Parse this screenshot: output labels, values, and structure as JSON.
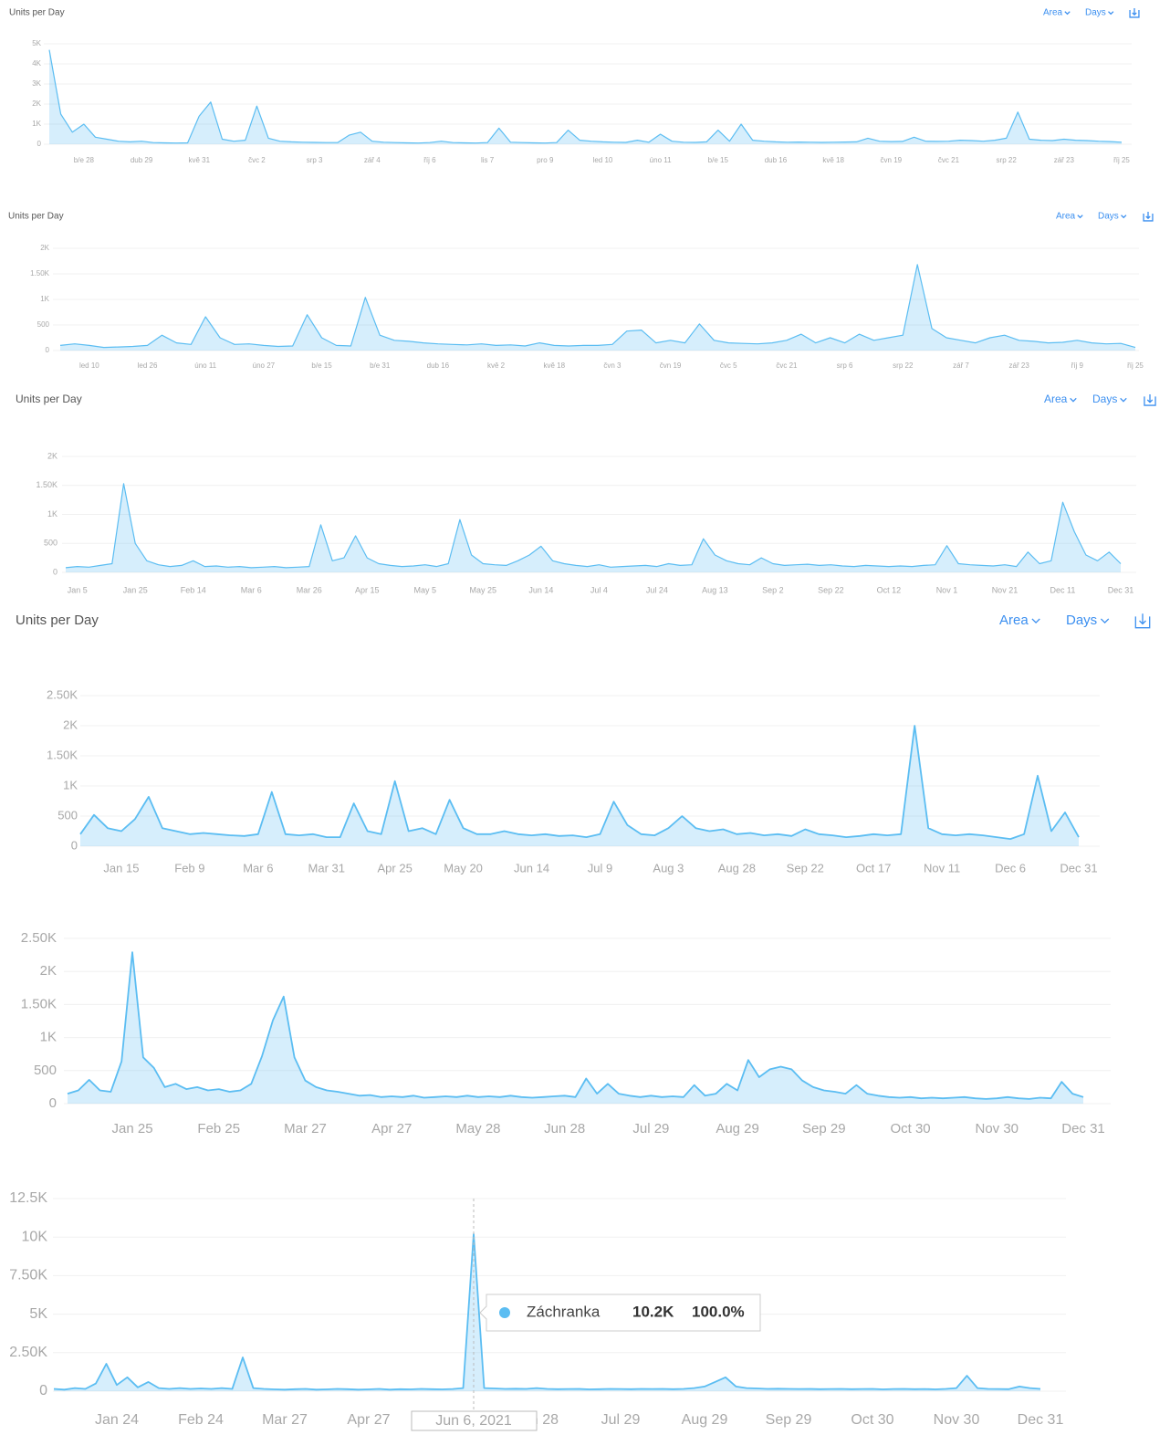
{
  "chart_data": [
    {
      "type": "area",
      "title": "Units per Day",
      "controls": [
        "Area",
        "Days"
      ],
      "color": "#5bbdf2",
      "categories": [
        null,
        null,
        null,
        "b/e 28",
        null,
        null,
        null,
        null,
        "dub 29",
        null,
        null,
        null,
        null,
        "kvě 31",
        null,
        null,
        null,
        null,
        "čvc 2",
        null,
        null,
        null,
        null,
        "srp 3",
        null,
        null,
        null,
        null,
        "zář 4",
        null,
        null,
        null,
        null,
        "říj 6",
        null,
        null,
        null,
        null,
        "lis 7",
        null,
        null,
        null,
        null,
        "pro 9",
        null,
        null,
        null,
        null,
        "led 10",
        null,
        null,
        null,
        null,
        "úno 11",
        null,
        null,
        null,
        null,
        "b/e 15",
        null,
        null,
        null,
        null,
        "dub 16",
        null,
        null,
        null,
        null,
        "kvě 18",
        null,
        null,
        null,
        null,
        "čvn 19",
        null,
        null,
        null,
        null,
        "čvc 21",
        null,
        null,
        null,
        null,
        "srp 22",
        null,
        null,
        null,
        null,
        "zář 23",
        null,
        null,
        null,
        null,
        "říj 25"
      ],
      "values": [
        4700,
        1500,
        600,
        1000,
        350,
        250,
        150,
        120,
        150,
        80,
        70,
        60,
        70,
        1400,
        2100,
        250,
        150,
        200,
        1900,
        300,
        150,
        120,
        100,
        90,
        80,
        80,
        450,
        600,
        150,
        100,
        80,
        70,
        60,
        80,
        150,
        80,
        70,
        60,
        80,
        800,
        100,
        80,
        70,
        60,
        80,
        700,
        200,
        150,
        120,
        100,
        90,
        200,
        100,
        500,
        150,
        100,
        90,
        120,
        700,
        150,
        1000,
        200,
        150,
        120,
        100,
        110,
        100,
        90,
        100,
        110,
        120,
        300,
        150,
        130,
        140,
        350,
        150,
        140,
        150,
        200,
        180,
        150,
        200,
        300,
        1600,
        250,
        200,
        180,
        250,
        200,
        180,
        150,
        130,
        100
      ],
      "ylim": [
        0,
        5000
      ],
      "yticks": [
        0,
        {
          "value": 1000,
          "label": "1K"
        },
        {
          "value": 2000,
          "label": "2K"
        },
        {
          "value": 3000,
          "label": "3K"
        },
        {
          "value": 4000,
          "label": "4K"
        },
        {
          "value": 5000,
          "label": "5K"
        }
      ],
      "grid": true
    },
    {
      "type": "area",
      "title": "Units per Day",
      "controls": [
        "Area",
        "Days"
      ],
      "color": "#5bbdf2",
      "categories": [
        null,
        null,
        "led 10",
        null,
        null,
        null,
        "led 26",
        null,
        null,
        null,
        "úno 11",
        null,
        null,
        null,
        "úno 27",
        null,
        null,
        null,
        "b/e 15",
        null,
        null,
        null,
        "b/e 31",
        null,
        null,
        null,
        "dub 16",
        null,
        null,
        null,
        "kvě 2",
        null,
        null,
        null,
        "kvě 18",
        null,
        null,
        null,
        "čvn 3",
        null,
        null,
        null,
        "čvn 19",
        null,
        null,
        null,
        "čvc 5",
        null,
        null,
        null,
        "čvc 21",
        null,
        null,
        null,
        "srp 6",
        null,
        null,
        null,
        "srp 22",
        null,
        null,
        null,
        "zář 7",
        null,
        null,
        null,
        "zář 23",
        null,
        null,
        null,
        "říj 9",
        null,
        null,
        null,
        "říj 25"
      ],
      "values": [
        100,
        130,
        100,
        60,
        70,
        80,
        100,
        300,
        150,
        120,
        660,
        250,
        120,
        130,
        100,
        80,
        90,
        700,
        250,
        100,
        90,
        1040,
        300,
        200,
        180,
        150,
        130,
        120,
        110,
        130,
        100,
        110,
        90,
        150,
        100,
        90,
        100,
        100,
        120,
        380,
        400,
        150,
        200,
        150,
        520,
        200,
        150,
        140,
        130,
        150,
        200,
        320,
        150,
        250,
        150,
        320,
        200,
        250,
        300,
        1680,
        430,
        250,
        200,
        150,
        250,
        300,
        200,
        180,
        150,
        160,
        200,
        150,
        130,
        140,
        60
      ],
      "ylim": [
        0,
        2000
      ],
      "yticks": [
        0,
        500,
        {
          "value": 1000,
          "label": "1K"
        },
        {
          "value": 1500,
          "label": "1.50K"
        },
        {
          "value": 2000,
          "label": "2K"
        }
      ],
      "grid": true
    },
    {
      "type": "area",
      "title": "Units per Day",
      "controls": [
        "Area",
        "Days"
      ],
      "color": "#5bbdf2",
      "categories": [
        null,
        "Jan 5",
        null,
        null,
        null,
        null,
        "Jan 25",
        null,
        null,
        null,
        null,
        "Feb 14",
        null,
        null,
        null,
        null,
        "Mar 6",
        null,
        null,
        null,
        null,
        "Mar 26",
        null,
        null,
        null,
        null,
        "Apr 15",
        null,
        null,
        null,
        null,
        "May 5",
        null,
        null,
        null,
        null,
        "May 25",
        null,
        null,
        null,
        null,
        "Jun 14",
        null,
        null,
        null,
        null,
        "Jul 4",
        null,
        null,
        null,
        null,
        "Jul 24",
        null,
        null,
        null,
        null,
        "Aug 13",
        null,
        null,
        null,
        null,
        "Sep 2",
        null,
        null,
        null,
        null,
        "Sep 22",
        null,
        null,
        null,
        null,
        "Oct 12",
        null,
        null,
        null,
        null,
        "Nov 1",
        null,
        null,
        null,
        null,
        "Nov 21",
        null,
        null,
        null,
        null,
        "Dec 11",
        null,
        null,
        null,
        null,
        "Dec 31"
      ],
      "values": [
        80,
        100,
        90,
        120,
        150,
        1530,
        500,
        200,
        130,
        100,
        120,
        200,
        100,
        110,
        90,
        100,
        80,
        90,
        100,
        80,
        90,
        100,
        820,
        200,
        250,
        630,
        250,
        150,
        120,
        100,
        110,
        130,
        100,
        150,
        910,
        300,
        150,
        130,
        120,
        200,
        300,
        450,
        200,
        150,
        120,
        100,
        130,
        90,
        100,
        110,
        120,
        100,
        150,
        120,
        130,
        580,
        300,
        200,
        150,
        130,
        250,
        150,
        120,
        130,
        140,
        120,
        130,
        110,
        100,
        120,
        110,
        100,
        110,
        100,
        120,
        130,
        460,
        150,
        130,
        120,
        110,
        130,
        100,
        350,
        150,
        200,
        1210,
        700,
        300,
        200,
        350,
        150
      ],
      "ylim": [
        0,
        2000
      ],
      "yticks": [
        0,
        500,
        {
          "value": 1000,
          "label": "1K"
        },
        {
          "value": 1500,
          "label": "1.50K"
        },
        {
          "value": 2000,
          "label": "2K"
        }
      ],
      "grid": true
    },
    {
      "type": "area",
      "title": "Units per Day",
      "controls": [
        "Area",
        "Days"
      ],
      "color": "#5bbdf2",
      "categories": [
        null,
        null,
        null,
        "Jan 15",
        null,
        null,
        null,
        null,
        "Feb 9",
        null,
        null,
        null,
        null,
        "Mar 6",
        null,
        null,
        null,
        null,
        "Mar 31",
        null,
        null,
        null,
        null,
        "Apr 25",
        null,
        null,
        null,
        null,
        "May 20",
        null,
        null,
        null,
        null,
        "Jun 14",
        null,
        null,
        null,
        null,
        "Jul 9",
        null,
        null,
        null,
        null,
        "Aug 3",
        null,
        null,
        null,
        null,
        "Aug 28",
        null,
        null,
        null,
        null,
        "Sep 22",
        null,
        null,
        null,
        null,
        "Oct 17",
        null,
        null,
        null,
        null,
        "Nov 11",
        null,
        null,
        null,
        null,
        "Dec 6",
        null,
        null,
        null,
        null,
        "Dec 31"
      ],
      "values": [
        200,
        520,
        300,
        250,
        450,
        820,
        300,
        250,
        200,
        220,
        200,
        180,
        170,
        200,
        900,
        200,
        180,
        200,
        150,
        150,
        710,
        250,
        200,
        1080,
        250,
        300,
        200,
        770,
        300,
        200,
        200,
        250,
        200,
        180,
        200,
        170,
        180,
        150,
        200,
        740,
        350,
        200,
        180,
        300,
        500,
        300,
        250,
        280,
        200,
        220,
        180,
        200,
        170,
        280,
        200,
        180,
        150,
        170,
        200,
        180,
        200,
        2000,
        300,
        200,
        180,
        200,
        180,
        150,
        120,
        200,
        1170,
        250,
        560,
        150
      ],
      "ylim": [
        0,
        2500
      ],
      "yticks": [
        0,
        500,
        {
          "value": 1000,
          "label": "1K"
        },
        {
          "value": 1500,
          "label": "1.50K"
        },
        {
          "value": 2000,
          "label": "2K"
        },
        {
          "value": 2500,
          "label": "2.50K"
        }
      ],
      "grid": true
    },
    {
      "type": "area",
      "color": "#5bbdf2",
      "categories": [
        null,
        null,
        null,
        null,
        null,
        null,
        "Jan 25",
        null,
        null,
        null,
        null,
        null,
        null,
        null,
        "Feb 25",
        null,
        null,
        null,
        null,
        null,
        null,
        null,
        "Mar 27",
        null,
        null,
        null,
        null,
        null,
        null,
        null,
        "Apr 27",
        null,
        null,
        null,
        null,
        null,
        null,
        null,
        "May 28",
        null,
        null,
        null,
        null,
        null,
        null,
        null,
        "Jun 28",
        null,
        null,
        null,
        null,
        null,
        null,
        null,
        "Jul 29",
        null,
        null,
        null,
        null,
        null,
        null,
        null,
        "Aug 29",
        null,
        null,
        null,
        null,
        null,
        null,
        null,
        "Sep 29",
        null,
        null,
        null,
        null,
        null,
        null,
        null,
        "Oct 30",
        null,
        null,
        null,
        null,
        null,
        null,
        null,
        "Nov 30",
        null,
        null,
        null,
        null,
        null,
        null,
        null,
        "Dec 31"
      ],
      "values": [
        150,
        200,
        360,
        200,
        180,
        640,
        2290,
        700,
        540,
        250,
        300,
        220,
        250,
        200,
        220,
        180,
        200,
        300,
        720,
        1260,
        1620,
        700,
        350,
        250,
        200,
        180,
        150,
        120,
        130,
        100,
        110,
        100,
        120,
        90,
        100,
        110,
        100,
        120,
        100,
        110,
        100,
        120,
        100,
        90,
        100,
        110,
        120,
        100,
        380,
        150,
        300,
        150,
        120,
        100,
        120,
        100,
        110,
        100,
        280,
        120,
        150,
        300,
        200,
        660,
        400,
        520,
        560,
        520,
        350,
        250,
        200,
        180,
        150,
        280,
        150,
        120,
        100,
        90,
        100,
        80,
        90,
        80,
        90,
        100,
        80,
        70,
        80,
        100,
        80,
        70,
        90,
        80,
        330,
        150,
        100
      ],
      "ylim": [
        0,
        2500
      ],
      "yticks": [
        0,
        500,
        {
          "value": 1000,
          "label": "1K"
        },
        {
          "value": 1500,
          "label": "1.50K"
        },
        {
          "value": 2000,
          "label": "2K"
        },
        {
          "value": 2500,
          "label": "2.50K"
        }
      ],
      "grid": true
    },
    {
      "type": "area",
      "categories": [
        null,
        null,
        null,
        null,
        null,
        null,
        "Jan 24",
        null,
        null,
        null,
        null,
        null,
        null,
        null,
        "Feb 24",
        null,
        null,
        null,
        null,
        null,
        null,
        null,
        "Mar 27",
        null,
        null,
        null,
        null,
        null,
        null,
        null,
        "Apr 27",
        null,
        null,
        null,
        null,
        null,
        null,
        null,
        null,
        null,
        null,
        null,
        null,
        null,
        null,
        null,
        "Jun 28",
        null,
        null,
        null,
        null,
        null,
        null,
        null,
        "Jul 29",
        null,
        null,
        null,
        null,
        null,
        null,
        null,
        "Aug 29",
        null,
        null,
        null,
        null,
        null,
        null,
        null,
        "Sep 29",
        null,
        null,
        null,
        null,
        null,
        null,
        null,
        "Oct 30",
        null,
        null,
        null,
        null,
        null,
        null,
        null,
        "Nov 30",
        null,
        null,
        null,
        null,
        null,
        null,
        null,
        "Dec 31"
      ],
      "series": [
        {
          "name": "Záchranka",
          "color": "#5bbdf2",
          "values": [
            150,
            100,
            200,
            150,
            500,
            1780,
            400,
            900,
            250,
            600,
            200,
            150,
            200,
            150,
            180,
            150,
            200,
            150,
            2190,
            200,
            150,
            120,
            100,
            130,
            150,
            100,
            120,
            150,
            130,
            100,
            120,
            150,
            100,
            130,
            120,
            150,
            130,
            120,
            140,
            200,
            10200,
            200,
            180,
            150,
            160,
            150,
            200,
            150,
            130,
            140,
            150,
            120,
            130,
            150,
            140,
            130,
            150,
            140,
            150,
            130,
            150,
            200,
            300,
            600,
            900,
            300,
            200,
            180,
            150,
            160,
            150,
            140,
            150,
            130,
            140,
            150,
            130,
            140,
            150,
            120,
            140,
            150,
            130,
            140,
            120,
            150,
            200,
            1000,
            200,
            150,
            140,
            130,
            300,
            200,
            150
          ]
        }
      ],
      "tooltip": {
        "date": "Jun 6, 2021",
        "value_label": "10.2K",
        "share": "100.0%"
      },
      "ylim": [
        0,
        12500
      ],
      "yticks": [
        0,
        {
          "value": 2500,
          "label": "2.50K"
        },
        {
          "value": 5000,
          "label": "5K"
        },
        {
          "value": 7500,
          "label": "7.50K"
        },
        {
          "value": 10000,
          "label": "10K"
        },
        {
          "value": 12500,
          "label": "12.5K"
        }
      ],
      "grid": true
    }
  ]
}
